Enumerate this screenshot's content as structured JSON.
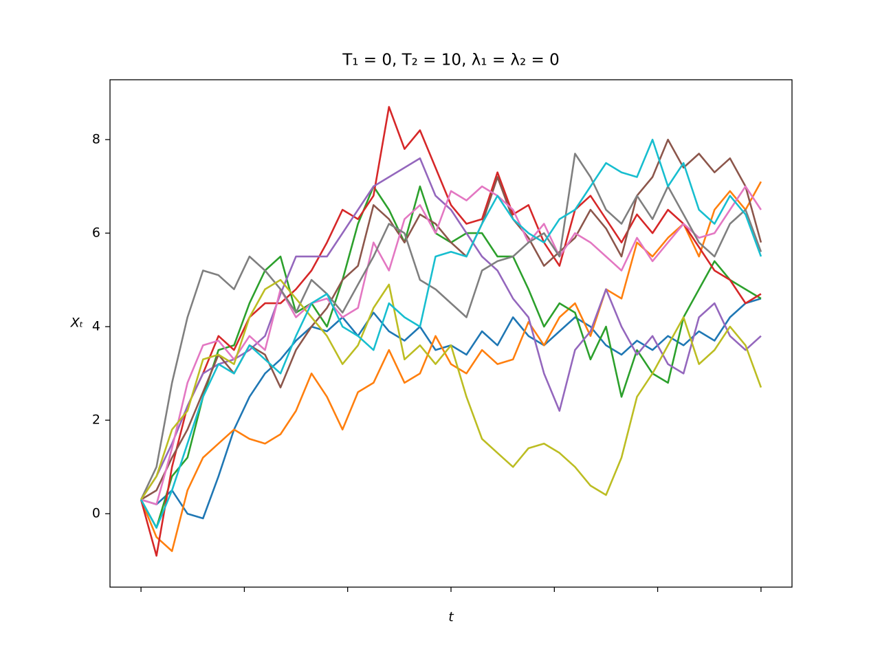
{
  "chart_data": {
    "type": "line",
    "title": "T₁ = 0, T₂ = 10, λ₁ = λ₂ = 0",
    "x_label": "t",
    "y_label": "Xₜ",
    "x": [
      0,
      0.25,
      0.5,
      0.75,
      1,
      1.25,
      1.5,
      1.75,
      2,
      2.25,
      2.5,
      2.75,
      3,
      3.25,
      3.5,
      3.75,
      4,
      4.25,
      4.5,
      4.75,
      5,
      5.25,
      5.5,
      5.75,
      6,
      6.25,
      6.5,
      6.75,
      7,
      7.25,
      7.5,
      7.75,
      8,
      8.25,
      8.5,
      8.75,
      9,
      9.25,
      9.5,
      9.75,
      10
    ],
    "xlim": [
      -0.5,
      10.5
    ],
    "xticks": [
      0,
      1.667,
      3.333,
      5,
      6.667,
      8.333,
      10
    ],
    "ylim": [
      -1.57,
      9.28
    ],
    "yticks": [
      0,
      2,
      4,
      6,
      8
    ],
    "grid": false,
    "series": [
      {
        "color": "#1f77b4",
        "values": [
          0.3,
          0.2,
          0.5,
          0,
          -0.1,
          0.8,
          1.8,
          2.5,
          3.0,
          3.3,
          3.7,
          4.0,
          3.9,
          4.2,
          3.8,
          4.3,
          3.9,
          3.7,
          4.0,
          3.5,
          3.6,
          3.4,
          3.9,
          3.6,
          4.2,
          3.8,
          3.6,
          3.9,
          4.2,
          4.0,
          3.6,
          3.4,
          3.7,
          3.5,
          3.8,
          3.6,
          3.9,
          3.7,
          4.2,
          4.5,
          4.6
        ]
      },
      {
        "color": "#ff7f0e",
        "values": [
          0.3,
          -0.5,
          -0.8,
          0.5,
          1.2,
          1.5,
          1.8,
          1.6,
          1.5,
          1.7,
          2.2,
          3.0,
          2.5,
          1.8,
          2.6,
          2.8,
          3.5,
          2.8,
          3.0,
          3.8,
          3.2,
          3.0,
          3.5,
          3.2,
          3.3,
          4.1,
          3.6,
          4.2,
          4.5,
          3.8,
          4.8,
          4.6,
          5.8,
          5.5,
          5.9,
          6.2,
          5.5,
          6.5,
          6.9,
          6.5,
          7.1
        ]
      },
      {
        "color": "#2ca02c",
        "values": [
          0.3,
          -0.3,
          0.8,
          1.2,
          2.5,
          3.5,
          3.6,
          4.5,
          5.2,
          5.5,
          4.3,
          4.5,
          4.0,
          5.0,
          6.2,
          7.0,
          6.5,
          5.8,
          7.0,
          6.0,
          5.8,
          6.0,
          6.0,
          5.5,
          5.5,
          4.8,
          4.0,
          4.5,
          4.3,
          3.3,
          4.0,
          2.5,
          3.5,
          3.0,
          2.8,
          4.2,
          4.8,
          5.4,
          5.0,
          4.8,
          4.6
        ]
      },
      {
        "color": "#d62728",
        "values": [
          0.3,
          -0.9,
          1.0,
          2.3,
          3.0,
          3.8,
          3.5,
          4.2,
          4.5,
          4.5,
          4.8,
          5.2,
          5.8,
          6.5,
          6.3,
          6.8,
          8.7,
          7.8,
          8.2,
          7.4,
          6.6,
          6.2,
          6.3,
          7.3,
          6.4,
          6.6,
          5.8,
          5.3,
          6.5,
          6.8,
          6.3,
          5.8,
          6.4,
          6.0,
          6.5,
          6.2,
          5.7,
          5.2,
          5.0,
          4.5,
          4.7
        ]
      },
      {
        "color": "#9467bd",
        "values": [
          0.3,
          0.8,
          1.5,
          2.3,
          3.0,
          3.2,
          3.3,
          3.5,
          3.8,
          4.7,
          5.5,
          5.5,
          5.5,
          6.0,
          6.5,
          7.0,
          7.2,
          7.4,
          7.6,
          6.8,
          6.5,
          6.0,
          5.5,
          5.2,
          4.6,
          4.2,
          3.0,
          2.2,
          3.5,
          3.9,
          4.8,
          4.0,
          3.4,
          3.8,
          3.2,
          3.0,
          4.2,
          4.5,
          3.8,
          3.5,
          3.8
        ]
      },
      {
        "color": "#8c564b",
        "values": [
          0.3,
          0.5,
          1.2,
          1.8,
          2.6,
          3.4,
          3.0,
          3.6,
          3.4,
          2.7,
          3.5,
          4.0,
          4.4,
          5.0,
          5.3,
          6.6,
          6.3,
          5.8,
          6.4,
          6.2,
          5.8,
          5.5,
          6.2,
          7.2,
          6.3,
          5.9,
          5.3,
          5.6,
          5.9,
          6.5,
          6.1,
          5.5,
          6.8,
          7.2,
          8.0,
          7.4,
          7.7,
          7.3,
          7.6,
          7.0,
          5.8
        ]
      },
      {
        "color": "#e377c2",
        "values": [
          0.3,
          0.2,
          1.4,
          2.8,
          3.6,
          3.7,
          3.3,
          3.8,
          3.5,
          4.8,
          4.2,
          4.5,
          4.6,
          4.2,
          4.4,
          5.8,
          5.2,
          6.3,
          6.6,
          6.0,
          6.9,
          6.7,
          7.0,
          6.8,
          6.5,
          5.8,
          6.2,
          5.5,
          6.0,
          5.8,
          5.5,
          5.2,
          5.9,
          5.4,
          5.8,
          6.2,
          5.9,
          6.0,
          6.5,
          7.0,
          6.5
        ]
      },
      {
        "color": "#7f7f7f",
        "values": [
          0.3,
          1.0,
          2.8,
          4.2,
          5.2,
          5.1,
          4.8,
          5.5,
          5.2,
          4.8,
          4.3,
          5.0,
          4.7,
          4.3,
          4.9,
          5.5,
          6.2,
          6.0,
          5.0,
          4.8,
          4.5,
          4.2,
          5.2,
          5.4,
          5.5,
          5.8,
          6.0,
          5.5,
          7.7,
          7.2,
          6.5,
          6.2,
          6.8,
          6.3,
          7.0,
          6.4,
          5.8,
          5.5,
          6.2,
          6.5,
          5.6
        ]
      },
      {
        "color": "#bcbd22",
        "values": [
          0.3,
          0.8,
          1.8,
          2.2,
          3.3,
          3.4,
          3.2,
          4.2,
          4.8,
          5.0,
          4.6,
          4.2,
          3.8,
          3.2,
          3.6,
          4.4,
          4.9,
          3.3,
          3.6,
          3.2,
          3.6,
          2.5,
          1.6,
          1.3,
          1.0,
          1.4,
          1.5,
          1.3,
          1.0,
          0.6,
          0.4,
          1.2,
          2.5,
          3.0,
          3.6,
          4.2,
          3.2,
          3.5,
          4.0,
          3.6,
          2.7
        ]
      },
      {
        "color": "#17becf",
        "values": [
          0.3,
          -0.3,
          0.5,
          1.5,
          2.5,
          3.2,
          3.0,
          3.6,
          3.3,
          3.0,
          3.8,
          4.5,
          4.7,
          4.0,
          3.8,
          3.5,
          4.5,
          4.2,
          4.0,
          5.5,
          5.6,
          5.5,
          6.2,
          6.8,
          6.3,
          6.0,
          5.8,
          6.3,
          6.5,
          7.0,
          7.5,
          7.3,
          7.2,
          8.0,
          7.0,
          7.5,
          6.5,
          6.2,
          6.8,
          6.4,
          5.5
        ]
      }
    ]
  }
}
